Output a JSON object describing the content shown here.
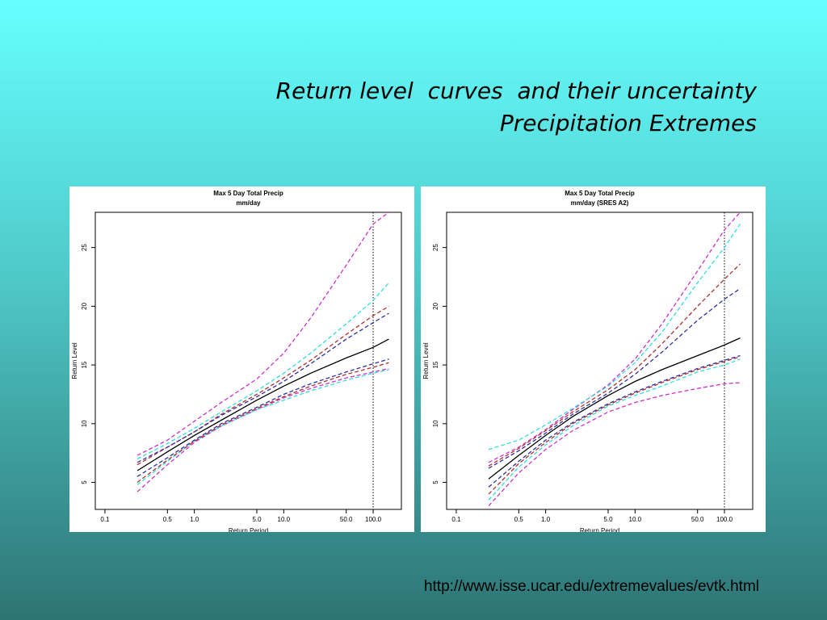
{
  "slide": {
    "title": [
      "Return level  curves  and their uncertainty",
      "Precipitation Extremes"
    ],
    "url": "http://www.isse.ucar.edu/extremevalues/evtk.html"
  },
  "chart_data": [
    {
      "type": "line",
      "title": "Max 5 Day Total Precip",
      "subtitle": "mm/day",
      "x_label": "Return Period",
      "y_label": "Return Level",
      "xscale": "log",
      "xlim": [
        0.078,
        207
      ],
      "ylim": [
        2.7,
        28
      ],
      "xticks": [
        0.1,
        0.5,
        {
          "value": 1,
          "label": "1.0"
        },
        {
          "value": 5,
          "label": "5.0"
        },
        {
          "value": 10,
          "label": "10.0"
        },
        {
          "value": 50,
          "label": "50.0"
        },
        {
          "value": 100,
          "label": "100.0"
        }
      ],
      "yticks": [
        5,
        10,
        15,
        20,
        25
      ],
      "vline": 100,
      "x": [
        0.23,
        0.5,
        1,
        2,
        5,
        10,
        20,
        50,
        100,
        150
      ],
      "series": [
        {
          "color": "#000000",
          "style": "solid",
          "values": [
            6.0,
            7.6,
            9.0,
            10.3,
            12.0,
            13.2,
            14.3,
            15.6,
            16.5,
            17.2
          ]
        },
        {
          "color": "#cc33cc",
          "style": "dashed",
          "values": [
            7.3,
            8.6,
            10.2,
            11.8,
            13.8,
            16.0,
            19.0,
            23.5,
            27,
            28
          ]
        },
        {
          "color": "#cc33cc",
          "style": "dashed",
          "values": [
            4.2,
            6.5,
            8.4,
            9.8,
            11.2,
            12.2,
            13.0,
            13.9,
            14.4,
            14.7
          ]
        },
        {
          "color": "#33dddd",
          "style": "dashed",
          "values": [
            7.0,
            8.3,
            9.6,
            11.0,
            12.8,
            14.3,
            16.0,
            18.5,
            20.5,
            22.0
          ]
        },
        {
          "color": "#33dddd",
          "style": "dashed",
          "values": [
            4.8,
            6.8,
            8.5,
            9.8,
            11.2,
            12.0,
            12.8,
            13.7,
            14.3,
            14.6
          ]
        },
        {
          "color": "#b03030",
          "style": "dashed",
          "values": [
            6.5,
            8.0,
            9.3,
            10.8,
            12.5,
            13.9,
            15.4,
            17.6,
            19.2,
            20.0
          ]
        },
        {
          "color": "#b03030",
          "style": "dashed",
          "values": [
            5.0,
            6.9,
            8.5,
            9.9,
            11.3,
            12.3,
            13.2,
            14.2,
            14.8,
            15.2
          ]
        },
        {
          "color": "#3030a0",
          "style": "dashed",
          "values": [
            6.7,
            8.0,
            9.3,
            10.7,
            12.3,
            13.6,
            15.1,
            17.2,
            18.6,
            19.4
          ]
        },
        {
          "color": "#3030a0",
          "style": "dashed",
          "values": [
            5.5,
            7.1,
            8.6,
            10.0,
            11.4,
            12.5,
            13.4,
            14.4,
            15.1,
            15.5
          ]
        }
      ]
    },
    {
      "type": "line",
      "title": "Max 5 Day Total Precip",
      "subtitle": "mm/day (SRES A2)",
      "x_label": "Return Period",
      "y_label": "Return Level",
      "xscale": "log",
      "xlim": [
        0.078,
        207
      ],
      "ylim": [
        2.7,
        28
      ],
      "xticks": [
        0.1,
        0.5,
        {
          "value": 1,
          "label": "1.0"
        },
        {
          "value": 5,
          "label": "5.0"
        },
        {
          "value": 10,
          "label": "10.0"
        },
        {
          "value": 50,
          "label": "50.0"
        },
        {
          "value": 100,
          "label": "100.0"
        }
      ],
      "yticks": [
        5,
        10,
        15,
        20,
        25
      ],
      "vline": 100,
      "x": [
        0.23,
        0.5,
        1,
        2,
        5,
        10,
        20,
        50,
        100,
        150
      ],
      "series": [
        {
          "color": "#000000",
          "style": "solid",
          "values": [
            5.3,
            7.3,
            9.0,
            10.6,
            12.4,
            13.6,
            14.6,
            15.8,
            16.7,
            17.3
          ]
        },
        {
          "color": "#cc33cc",
          "style": "dashed",
          "values": [
            6.7,
            8.0,
            9.5,
            11.2,
            13.3,
            15.5,
            18.5,
            23,
            26.5,
            28
          ]
        },
        {
          "color": "#cc33cc",
          "style": "dashed",
          "values": [
            3.0,
            5.8,
            7.8,
            9.4,
            11.0,
            11.8,
            12.4,
            13.0,
            13.4,
            13.5
          ]
        },
        {
          "color": "#33dddd",
          "style": "dashed",
          "values": [
            7.8,
            8.6,
            9.9,
            11.3,
            13.2,
            15.2,
            17.8,
            22,
            25,
            27
          ]
        },
        {
          "color": "#33dddd",
          "style": "dashed",
          "values": [
            3.5,
            6.3,
            8.2,
            9.8,
            11.5,
            12.4,
            13.2,
            14.4,
            15.0,
            15.5
          ]
        },
        {
          "color": "#b03030",
          "style": "dashed",
          "values": [
            6.4,
            7.9,
            9.4,
            11.0,
            12.9,
            14.6,
            16.8,
            20,
            22.3,
            23.6
          ]
        },
        {
          "color": "#b03030",
          "style": "dashed",
          "values": [
            4.0,
            6.6,
            8.4,
            10.0,
            11.6,
            12.6,
            13.5,
            14.6,
            15.3,
            15.7
          ]
        },
        {
          "color": "#3030a0",
          "style": "dashed",
          "values": [
            6.2,
            7.7,
            9.2,
            10.8,
            12.6,
            14.2,
            16.1,
            18.8,
            20.6,
            21.5
          ]
        },
        {
          "color": "#3030a0",
          "style": "dashed",
          "values": [
            4.6,
            6.8,
            8.6,
            10.1,
            11.7,
            12.7,
            13.6,
            14.7,
            15.4,
            15.8
          ]
        }
      ]
    }
  ]
}
